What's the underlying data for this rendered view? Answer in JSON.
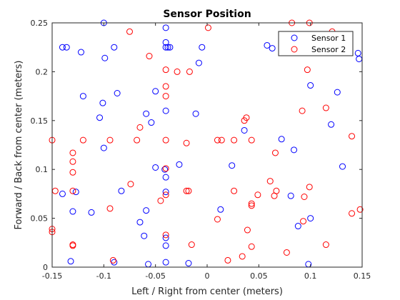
{
  "chart_data": {
    "type": "scatter",
    "title": "Sensor Position",
    "xlabel": "Left / Right from center (meters)",
    "ylabel": "Forward / Back from center (meters)",
    "xlim": [
      -0.15,
      0.15
    ],
    "ylim": [
      0,
      0.25
    ],
    "xticks": [
      -0.15,
      -0.1,
      -0.05,
      0,
      0.05,
      0.1,
      0.15
    ],
    "xtick_labels": [
      "-0.15",
      "-0.1",
      "-0.05",
      "0",
      "0.05",
      "0.1",
      "0.15"
    ],
    "yticks": [
      0,
      0.05,
      0.1,
      0.15,
      0.2,
      0.25
    ],
    "ytick_labels": [
      "0",
      "0.05",
      "0.1",
      "0.15",
      "0.2",
      "0.25"
    ],
    "grid": false,
    "legend_position": "top-right",
    "marker": "circle-open",
    "series": [
      {
        "name": "Sensor 1",
        "color": "#0000ff",
        "points": [
          [
            -0.1,
            0.25
          ],
          [
            -0.04,
            0.245
          ],
          [
            -0.14,
            0.225
          ],
          [
            -0.136,
            0.225
          ],
          [
            -0.122,
            0.22
          ],
          [
            -0.09,
            0.225
          ],
          [
            -0.04,
            0.23
          ],
          [
            -0.04,
            0.225
          ],
          [
            -0.038,
            0.225
          ],
          [
            -0.036,
            0.225
          ],
          [
            -0.005,
            0.225
          ],
          [
            0.058,
            0.227
          ],
          [
            0.063,
            0.224
          ],
          [
            0.146,
            0.219
          ],
          [
            0.147,
            0.213
          ],
          [
            -0.099,
            0.214
          ],
          [
            -0.008,
            0.209
          ],
          [
            -0.05,
            0.18
          ],
          [
            -0.087,
            0.178
          ],
          [
            -0.12,
            0.175
          ],
          [
            -0.101,
            0.168
          ],
          [
            0.1,
            0.186
          ],
          [
            0.126,
            0.179
          ],
          [
            -0.04,
            0.16
          ],
          [
            -0.059,
            0.157
          ],
          [
            -0.011,
            0.157
          ],
          [
            -0.104,
            0.153
          ],
          [
            -0.054,
            0.148
          ],
          [
            0.12,
            0.146
          ],
          [
            0.036,
            0.14
          ],
          [
            0.072,
            0.131
          ],
          [
            -0.1,
            0.122
          ],
          [
            0.084,
            0.12
          ],
          [
            -0.027,
            0.105
          ],
          [
            -0.05,
            0.102
          ],
          [
            -0.041,
            0.1
          ],
          [
            0.024,
            0.104
          ],
          [
            0.131,
            0.103
          ],
          [
            -0.04,
            0.092
          ],
          [
            -0.083,
            0.078
          ],
          [
            -0.04,
            0.077
          ],
          [
            -0.127,
            0.077
          ],
          [
            -0.14,
            0.075
          ],
          [
            0.081,
            0.073
          ],
          [
            -0.13,
            0.057
          ],
          [
            -0.112,
            0.056
          ],
          [
            -0.059,
            0.058
          ],
          [
            0.013,
            0.059
          ],
          [
            0.1,
            0.05
          ],
          [
            -0.065,
            0.046
          ],
          [
            0.088,
            0.042
          ],
          [
            -0.04,
            0.03
          ],
          [
            -0.061,
            0.032
          ],
          [
            -0.04,
            0.022
          ],
          [
            -0.132,
            0.006
          ],
          [
            -0.09,
            0.005
          ],
          [
            -0.057,
            0.003
          ],
          [
            -0.04,
            0.005
          ],
          [
            -0.018,
            0.004
          ],
          [
            0.098,
            0.003
          ]
        ]
      },
      {
        "name": "Sensor 2",
        "color": "#ff0000",
        "points": [
          [
            0.082,
            0.25
          ],
          [
            0.099,
            0.25
          ],
          [
            0.001,
            0.245
          ],
          [
            -0.075,
            0.241
          ],
          [
            0.121,
            0.241
          ],
          [
            -0.056,
            0.216
          ],
          [
            -0.04,
            0.202
          ],
          [
            -0.029,
            0.2
          ],
          [
            -0.017,
            0.2
          ],
          [
            0.097,
            0.202
          ],
          [
            -0.04,
            0.185
          ],
          [
            -0.04,
            0.175
          ],
          [
            0.115,
            0.163
          ],
          [
            0.092,
            0.16
          ],
          [
            0.038,
            0.153
          ],
          [
            0.036,
            0.15
          ],
          [
            -0.065,
            0.143
          ],
          [
            -0.15,
            0.13
          ],
          [
            -0.12,
            0.13
          ],
          [
            -0.094,
            0.13
          ],
          [
            -0.068,
            0.13
          ],
          [
            -0.04,
            0.13
          ],
          [
            -0.02,
            0.127
          ],
          [
            0.01,
            0.13
          ],
          [
            0.014,
            0.13
          ],
          [
            0.026,
            0.13
          ],
          [
            0.043,
            0.13
          ],
          [
            0.14,
            0.134
          ],
          [
            -0.13,
            0.117
          ],
          [
            0.066,
            0.117
          ],
          [
            -0.13,
            0.108
          ],
          [
            -0.13,
            0.097
          ],
          [
            -0.04,
            0.101
          ],
          [
            -0.074,
            0.085
          ],
          [
            0.061,
            0.088
          ],
          [
            -0.147,
            0.078
          ],
          [
            -0.13,
            0.078
          ],
          [
            -0.02,
            0.078
          ],
          [
            -0.018,
            0.078
          ],
          [
            0.026,
            0.078
          ],
          [
            0.067,
            0.078
          ],
          [
            0.049,
            0.074
          ],
          [
            0.094,
            0.072
          ],
          [
            0.065,
            0.073
          ],
          [
            -0.04,
            0.074
          ],
          [
            -0.045,
            0.068
          ],
          [
            0.043,
            0.065
          ],
          [
            0.043,
            0.063
          ],
          [
            0.099,
            0.082
          ],
          [
            -0.094,
            0.06
          ],
          [
            0.14,
            0.055
          ],
          [
            0.148,
            0.059
          ],
          [
            0.01,
            0.049
          ],
          [
            0.093,
            0.047
          ],
          [
            -0.15,
            0.039
          ],
          [
            -0.15,
            0.036
          ],
          [
            -0.04,
            0.033
          ],
          [
            0.039,
            0.038
          ],
          [
            -0.13,
            0.023
          ],
          [
            -0.13,
            0.022
          ],
          [
            -0.015,
            0.023
          ],
          [
            0.043,
            0.021
          ],
          [
            0.115,
            0.023
          ],
          [
            0.034,
            0.011
          ],
          [
            0.077,
            0.015
          ],
          [
            0.02,
            0.007
          ],
          [
            -0.091,
            0.007
          ]
        ]
      }
    ]
  }
}
